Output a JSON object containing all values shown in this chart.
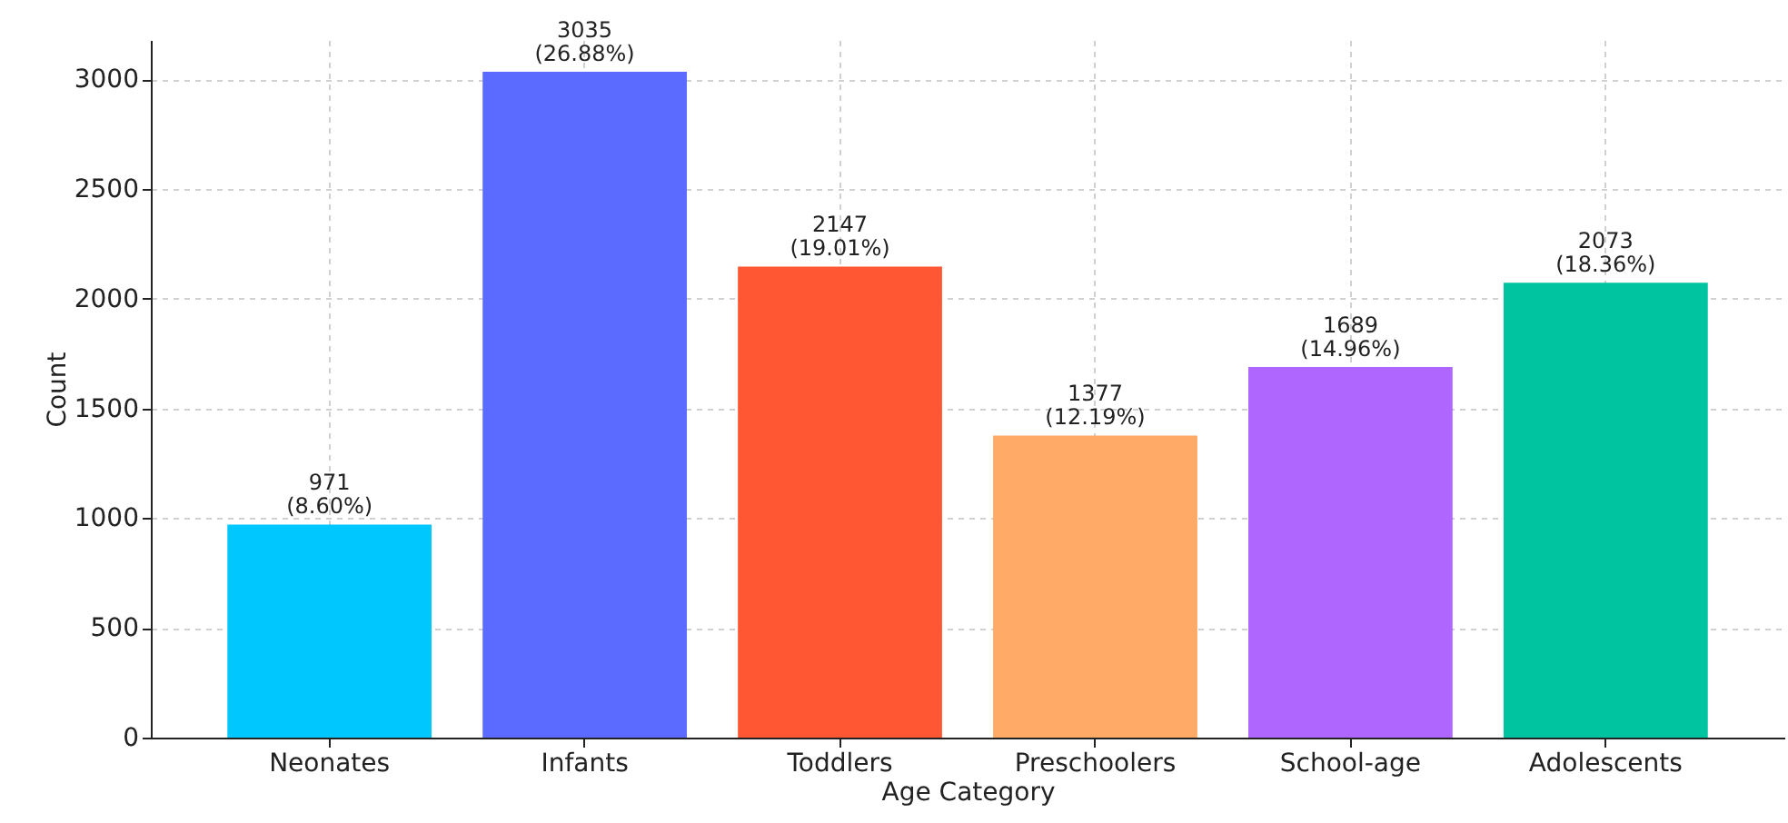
{
  "chart_data": {
    "type": "bar",
    "xlabel": "Age Category",
    "ylabel": "Count",
    "categories": [
      "Neonates",
      "Infants",
      "Toddlers",
      "Preschoolers",
      "School-age",
      "Adolescents"
    ],
    "values": [
      971,
      3035,
      2147,
      1377,
      1689,
      2073
    ],
    "colors": [
      "#00c8ff",
      "#5b6bff",
      "#ff5733",
      "#ffaa66",
      "#ae66ff",
      "#00c4a0"
    ],
    "value_labels": [
      "971\n(8.60%)",
      "3035\n(26.88%)",
      "2147\n(19.01%)",
      "1377\n(12.19%)",
      "1689\n(14.96%)",
      "2073\n(18.36%)"
    ],
    "ylim": [
      0,
      3180
    ],
    "yticks": [
      0,
      500,
      1000,
      1500,
      2000,
      2500,
      3000
    ],
    "grid": true
  }
}
